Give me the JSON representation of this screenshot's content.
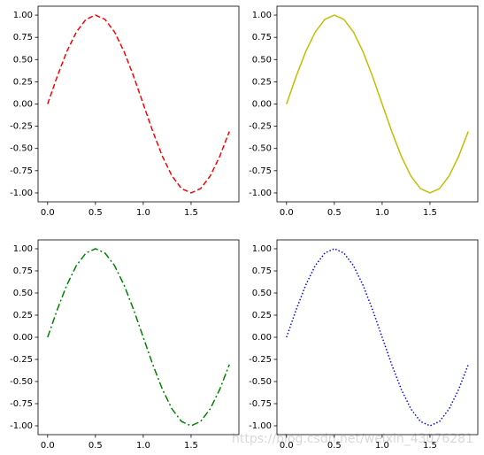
{
  "chart_data": [
    {
      "type": "line",
      "x": [
        0,
        0.1,
        0.2,
        0.3,
        0.4,
        0.5,
        0.6,
        0.7,
        0.8,
        0.9,
        1.0,
        1.1,
        1.2,
        1.3,
        1.4,
        1.5,
        1.6,
        1.7,
        1.8,
        1.9
      ],
      "values": [
        0,
        0.309,
        0.588,
        0.809,
        0.951,
        1,
        0.951,
        0.809,
        0.588,
        0.309,
        0,
        -0.309,
        -0.588,
        -0.809,
        -0.951,
        -1,
        -0.951,
        -0.809,
        -0.588,
        -0.309
      ],
      "color": "#ff0000",
      "linestyle": "dashed",
      "xlim": [
        -0.1,
        2.0
      ],
      "ylim": [
        -1.1,
        1.1
      ],
      "xticks": [
        {
          "value": 0,
          "label": "0.0"
        },
        {
          "value": 0.5,
          "label": "0.5"
        },
        {
          "value": 1,
          "label": "1.0"
        },
        {
          "value": 1.5,
          "label": "1.5"
        }
      ],
      "yticks": [
        {
          "value": 1,
          "label": "1.00"
        },
        {
          "value": 0.75,
          "label": "0.75"
        },
        {
          "value": 0.5,
          "label": "0.50"
        },
        {
          "value": 0.25,
          "label": "0.25"
        },
        {
          "value": 0,
          "label": "0.00"
        },
        {
          "value": -0.25,
          "label": "-0.25"
        },
        {
          "value": -0.5,
          "label": "-0.50"
        },
        {
          "value": -0.75,
          "label": "-0.75"
        },
        {
          "value": -1,
          "label": "-1.00"
        }
      ]
    },
    {
      "type": "line",
      "x": [
        0,
        0.1,
        0.2,
        0.3,
        0.4,
        0.5,
        0.6,
        0.7,
        0.8,
        0.9,
        1.0,
        1.1,
        1.2,
        1.3,
        1.4,
        1.5,
        1.6,
        1.7,
        1.8,
        1.9
      ],
      "values": [
        0,
        0.309,
        0.588,
        0.809,
        0.951,
        1,
        0.951,
        0.809,
        0.588,
        0.309,
        0,
        -0.309,
        -0.588,
        -0.809,
        -0.951,
        -1,
        -0.951,
        -0.809,
        -0.588,
        -0.309
      ],
      "color": "#bfbf00",
      "linestyle": "solid",
      "xlim": [
        -0.1,
        2.0
      ],
      "ylim": [
        -1.1,
        1.1
      ],
      "xticks": [
        {
          "value": 0,
          "label": "0.0"
        },
        {
          "value": 0.5,
          "label": "0.5"
        },
        {
          "value": 1,
          "label": "1.0"
        },
        {
          "value": 1.5,
          "label": "1.5"
        }
      ],
      "yticks": [
        {
          "value": 1,
          "label": "1.00"
        },
        {
          "value": 0.75,
          "label": "0.75"
        },
        {
          "value": 0.5,
          "label": "0.50"
        },
        {
          "value": 0.25,
          "label": "0.25"
        },
        {
          "value": 0,
          "label": "0.00"
        },
        {
          "value": -0.25,
          "label": "-0.25"
        },
        {
          "value": -0.5,
          "label": "-0.50"
        },
        {
          "value": -0.75,
          "label": "-0.75"
        },
        {
          "value": -1,
          "label": "-1.00"
        }
      ]
    },
    {
      "type": "line",
      "x": [
        0,
        0.1,
        0.2,
        0.3,
        0.4,
        0.5,
        0.6,
        0.7,
        0.8,
        0.9,
        1.0,
        1.1,
        1.2,
        1.3,
        1.4,
        1.5,
        1.6,
        1.7,
        1.8,
        1.9
      ],
      "values": [
        0,
        0.309,
        0.588,
        0.809,
        0.951,
        1,
        0.951,
        0.809,
        0.588,
        0.309,
        0,
        -0.309,
        -0.588,
        -0.809,
        -0.951,
        -1,
        -0.951,
        -0.809,
        -0.588,
        -0.309
      ],
      "color": "#008000",
      "linestyle": "dashdot",
      "xlim": [
        -0.1,
        2.0
      ],
      "ylim": [
        -1.1,
        1.1
      ],
      "xticks": [
        {
          "value": 0,
          "label": "0.0"
        },
        {
          "value": 0.5,
          "label": "0.5"
        },
        {
          "value": 1,
          "label": "1.0"
        },
        {
          "value": 1.5,
          "label": "1.5"
        }
      ],
      "yticks": [
        {
          "value": 1,
          "label": "1.00"
        },
        {
          "value": 0.75,
          "label": "0.75"
        },
        {
          "value": 0.5,
          "label": "0.50"
        },
        {
          "value": 0.25,
          "label": "0.25"
        },
        {
          "value": 0,
          "label": "0.00"
        },
        {
          "value": -0.25,
          "label": "-0.25"
        },
        {
          "value": -0.5,
          "label": "-0.50"
        },
        {
          "value": -0.75,
          "label": "-0.75"
        },
        {
          "value": -1,
          "label": "-1.00"
        }
      ]
    },
    {
      "type": "line",
      "x": [
        0,
        0.1,
        0.2,
        0.3,
        0.4,
        0.5,
        0.6,
        0.7,
        0.8,
        0.9,
        1.0,
        1.1,
        1.2,
        1.3,
        1.4,
        1.5,
        1.6,
        1.7,
        1.8,
        1.9
      ],
      "values": [
        0,
        0.309,
        0.588,
        0.809,
        0.951,
        1,
        0.951,
        0.809,
        0.588,
        0.309,
        0,
        -0.309,
        -0.588,
        -0.809,
        -0.951,
        -1,
        -0.951,
        -0.809,
        -0.588,
        -0.309
      ],
      "color": "#0000ff",
      "linestyle": "dotted",
      "xlim": [
        -0.1,
        2.0
      ],
      "ylim": [
        -1.1,
        1.1
      ],
      "xticks": [
        {
          "value": 0,
          "label": "0.0"
        },
        {
          "value": 0.5,
          "label": "0.5"
        },
        {
          "value": 1,
          "label": "1.0"
        },
        {
          "value": 1.5,
          "label": "1.5"
        }
      ],
      "yticks": [
        {
          "value": 1,
          "label": "1.00"
        },
        {
          "value": 0.75,
          "label": "0.75"
        },
        {
          "value": 0.5,
          "label": "0.50"
        },
        {
          "value": 0.25,
          "label": "0.25"
        },
        {
          "value": 0,
          "label": "0.00"
        },
        {
          "value": -0.25,
          "label": "-0.25"
        },
        {
          "value": -0.5,
          "label": "-0.50"
        },
        {
          "value": -0.75,
          "label": "-0.75"
        },
        {
          "value": -1,
          "label": "-1.00"
        }
      ]
    }
  ],
  "watermark": "https://blog.csdn.net/weixin_43076281"
}
